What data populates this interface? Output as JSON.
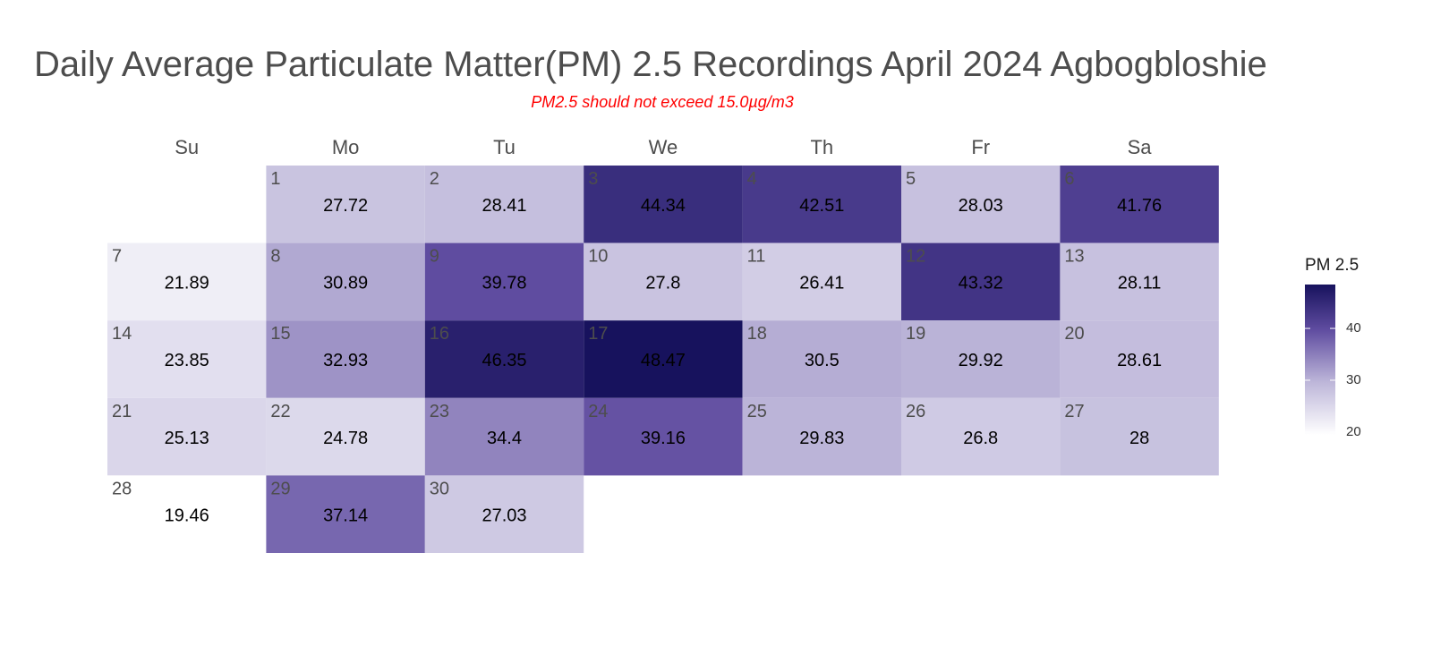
{
  "title": "Daily Average Particulate Matter(PM) 2.5 Recordings April 2024 Agbogbloshie",
  "subtitle": "PM2.5 should not exceed 15.0µg/m3",
  "legend": {
    "title": "PM 2.5",
    "ticks": [
      "20",
      "30",
      "40"
    ],
    "tick_values": [
      20,
      30,
      40
    ],
    "range": [
      19.46,
      48.47
    ],
    "color_low": "#ffffff",
    "color_high": "#17125d"
  },
  "chart_data": {
    "type": "heatmap",
    "title": "Daily Average Particulate Matter(PM) 2.5 Recordings April 2024 Agbogbloshie",
    "subtitle": "PM2.5 should not exceed 15.0µg/m3",
    "weekdays": [
      "Su",
      "Mo",
      "Tu",
      "We",
      "Th",
      "Fr",
      "Sa"
    ],
    "days": [
      1,
      2,
      3,
      4,
      5,
      6,
      7,
      8,
      9,
      10,
      11,
      12,
      13,
      14,
      15,
      16,
      17,
      18,
      19,
      20,
      21,
      22,
      23,
      24,
      25,
      26,
      27,
      28,
      29,
      30
    ],
    "values": [
      "27.72",
      "28.41",
      "44.34",
      "42.51",
      "28.03",
      "41.76",
      "21.89",
      "30.89",
      "39.78",
      "27.8",
      "26.41",
      "43.32",
      "28.11",
      "23.85",
      "32.93",
      "46.35",
      "48.47",
      "30.5",
      "29.92",
      "28.61",
      "25.13",
      "24.78",
      "34.4",
      "39.16",
      "29.83",
      "26.8",
      "28",
      "19.46",
      "37.14",
      "27.03"
    ],
    "first_weekday_index": 1,
    "colorbar_title": "PM 2.5"
  }
}
